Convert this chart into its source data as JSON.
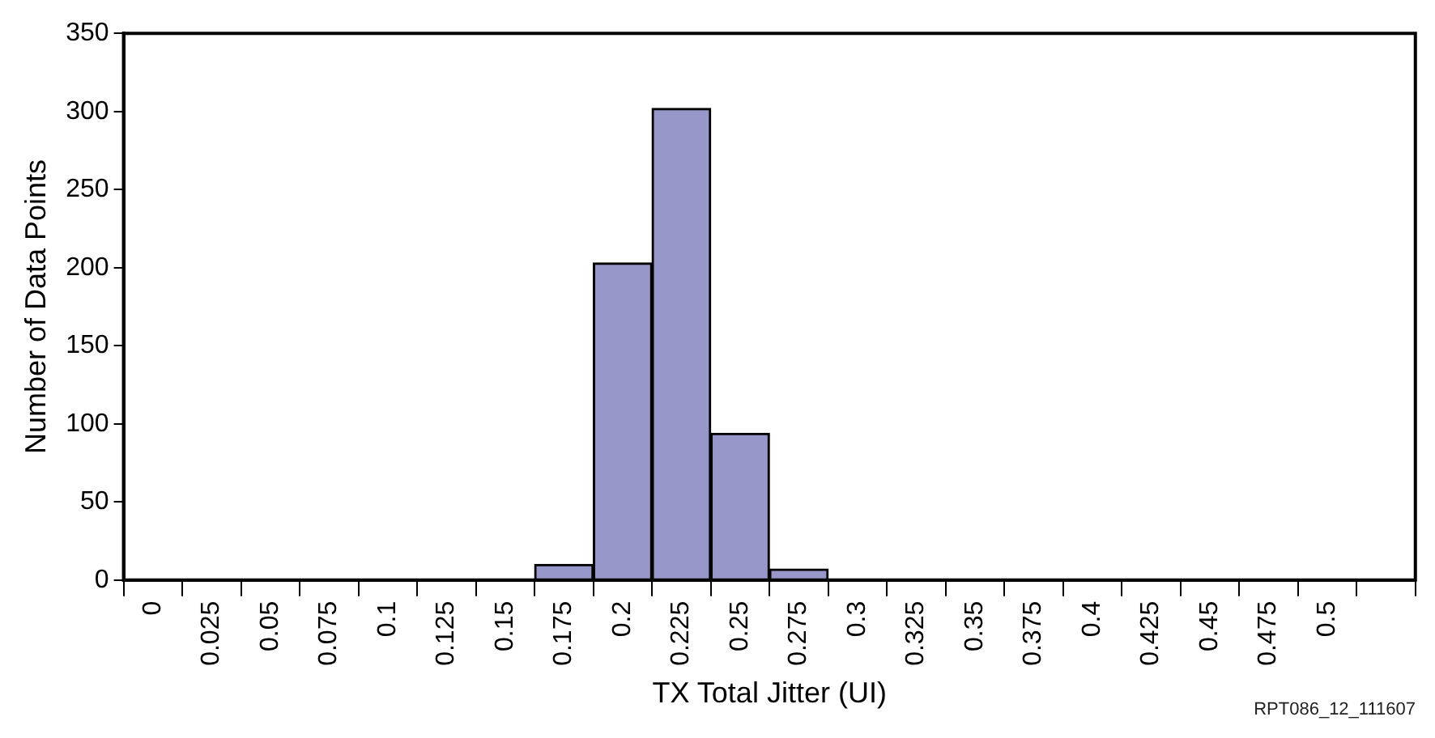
{
  "chart_data": {
    "type": "bar",
    "xlabel": "TX Total Jitter (UI)",
    "ylabel": "Number of Data Points",
    "categories": [
      "0",
      "0.025",
      "0.05",
      "0.075",
      "0.1",
      "0.125",
      "0.15",
      "0.175",
      "0.2",
      "0.225",
      "0.25",
      "0.275",
      "0.3",
      "0.325",
      "0.35",
      "0.375",
      "0.4",
      "0.425",
      "0.45",
      "0.475",
      "0.5",
      null
    ],
    "values": [
      0,
      0,
      0,
      0,
      0,
      0,
      0,
      10,
      203,
      302,
      94,
      7,
      0,
      0,
      0,
      0,
      0,
      0,
      0,
      0,
      0,
      0
    ],
    "color": "#9797c9",
    "ylim": [
      0,
      350
    ],
    "yticks": [
      0,
      50,
      100,
      150,
      200,
      250,
      300,
      350
    ],
    "legend": false,
    "annotations": [
      "RPT086_12_111607"
    ]
  }
}
